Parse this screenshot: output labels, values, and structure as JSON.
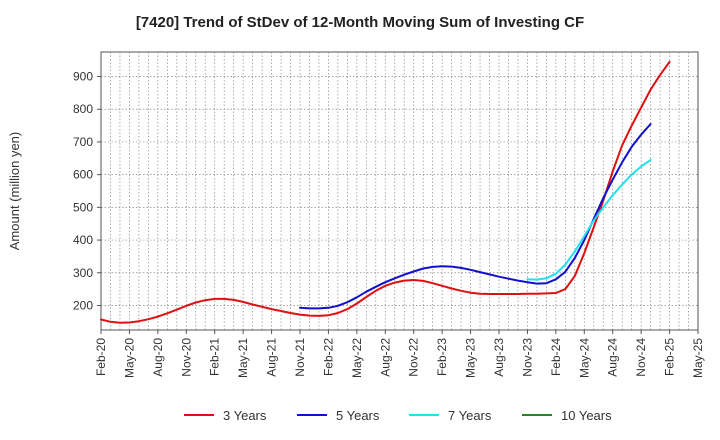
{
  "chart_data": {
    "type": "line",
    "title": "[7420]  Trend of StDev of 12-Month Moving Sum of Investing CF",
    "xlabel": "",
    "ylabel": "Amount (million yen)",
    "ylim": [
      125,
      975
    ],
    "yticks": [
      200,
      300,
      400,
      500,
      600,
      700,
      800,
      900
    ],
    "grid": true,
    "legend_position": "bottom",
    "x_tick_labels": [
      "Feb-20",
      "May-20",
      "Aug-20",
      "Nov-20",
      "Feb-21",
      "May-21",
      "Aug-21",
      "Nov-21",
      "Feb-22",
      "May-22",
      "Aug-22",
      "Nov-22",
      "Feb-23",
      "May-23",
      "Aug-23",
      "Nov-23",
      "Feb-24",
      "May-24",
      "Aug-24",
      "Nov-24",
      "Feb-25",
      "May-25"
    ],
    "x_months": [
      "Feb-20",
      "Mar-20",
      "Apr-20",
      "May-20",
      "Jun-20",
      "Jul-20",
      "Aug-20",
      "Sep-20",
      "Oct-20",
      "Nov-20",
      "Dec-20",
      "Jan-21",
      "Feb-21",
      "Mar-21",
      "Apr-21",
      "May-21",
      "Jun-21",
      "Jul-21",
      "Aug-21",
      "Sep-21",
      "Oct-21",
      "Nov-21",
      "Dec-21",
      "Jan-22",
      "Feb-22",
      "Mar-22",
      "Apr-22",
      "May-22",
      "Jun-22",
      "Jul-22",
      "Aug-22",
      "Sep-22",
      "Oct-22",
      "Nov-22",
      "Dec-22",
      "Jan-23",
      "Feb-23",
      "Mar-23",
      "Apr-23",
      "May-23",
      "Jun-23",
      "Jul-23",
      "Aug-23",
      "Sep-23",
      "Oct-23",
      "Nov-23",
      "Dec-23",
      "Jan-24",
      "Feb-24",
      "Mar-24",
      "Apr-24",
      "May-24",
      "Jun-24",
      "Jul-24",
      "Aug-24",
      "Sep-24",
      "Oct-24",
      "Nov-24",
      "Dec-24",
      "Jan-25",
      "Feb-25",
      "Mar-25",
      "Apr-25",
      "May-25"
    ],
    "series": [
      {
        "name": "3 Years",
        "color": "#dd1111",
        "start": "Feb-20",
        "values": [
          157,
          150,
          147,
          148,
          152,
          158,
          166,
          176,
          187,
          199,
          209,
          216,
          220,
          220,
          217,
          211,
          203,
          196,
          189,
          183,
          177,
          172,
          169,
          168,
          170,
          177,
          189,
          206,
          226,
          245,
          260,
          270,
          276,
          278,
          275,
          268,
          260,
          252,
          245,
          239,
          236,
          235,
          235,
          235,
          235,
          236,
          236,
          237,
          238,
          250,
          290,
          360,
          440,
          520,
          610,
          690,
          750,
          805,
          860,
          905,
          945
        ]
      },
      {
        "name": "5 Years",
        "color": "#1111cc",
        "start": "Nov-21",
        "values": [
          193,
          191,
          191,
          193,
          199,
          210,
          225,
          242,
          257,
          271,
          283,
          294,
          304,
          313,
          318,
          320,
          319,
          315,
          309,
          302,
          295,
          288,
          282,
          276,
          271,
          267,
          268,
          280,
          303,
          345,
          400,
          465,
          528,
          585,
          638,
          685,
          722,
          755
        ]
      },
      {
        "name": "7 Years",
        "color": "#22e0ee",
        "start": "Nov-23",
        "values": [
          280,
          279,
          283,
          297,
          325,
          365,
          412,
          460,
          500,
          537,
          570,
          600,
          625,
          645
        ]
      },
      {
        "name": "10 Years",
        "color": "#228822",
        "start": "",
        "values": []
      }
    ]
  }
}
